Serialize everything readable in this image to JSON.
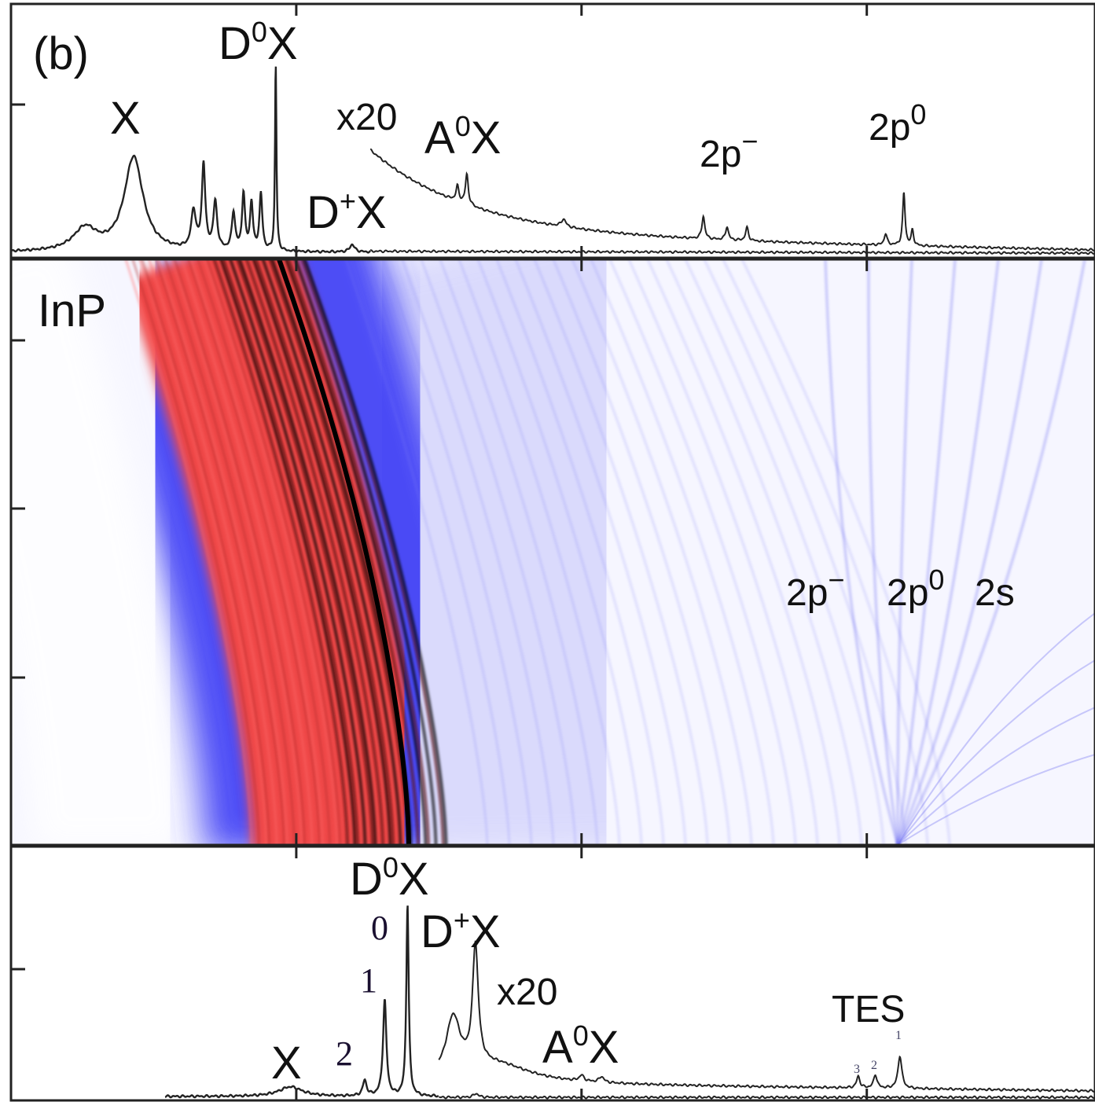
{
  "chart_data": [
    {
      "type": "line",
      "panel": "top",
      "panel_label": "(b)",
      "xlim": [
        0,
        3.8
      ],
      "xticks": [
        1,
        2,
        3
      ],
      "tick_labels_shown": false,
      "ylabel": "",
      "xlabel": "",
      "line_color": "#222222",
      "baseline_trace": {
        "x_range": [
          0.0,
          1.26
        ],
        "peaks": [
          {
            "x": 0.26,
            "h": 0.12,
            "w": 0.05
          },
          {
            "x": 0.43,
            "h": 0.5,
            "w": 0.04
          },
          {
            "x": 0.64,
            "h": 0.2,
            "w": 0.01
          },
          {
            "x": 0.675,
            "h": 0.45,
            "w": 0.007
          },
          {
            "x": 0.716,
            "h": 0.25,
            "w": 0.008
          },
          {
            "x": 0.78,
            "h": 0.2,
            "w": 0.007
          },
          {
            "x": 0.815,
            "h": 0.3,
            "w": 0.006
          },
          {
            "x": 0.843,
            "h": 0.25,
            "w": 0.006
          },
          {
            "x": 0.876,
            "h": 0.3,
            "w": 0.006
          },
          {
            "x": 0.928,
            "h": 1.0,
            "w": 0.003
          },
          {
            "x": 1.196,
            "h": 0.04,
            "w": 0.01
          }
        ]
      },
      "magnified_trace": {
        "factor_label": "x20",
        "x_range": [
          1.26,
          3.8
        ],
        "background": {
          "amp": 0.45,
          "decay": 0.35,
          "offset": 0.08
        },
        "peaks": [
          {
            "x": 1.565,
            "h": 0.08,
            "w": 0.006
          },
          {
            "x": 1.598,
            "h": 0.16,
            "w": 0.006
          },
          {
            "x": 1.937,
            "h": 0.04,
            "w": 0.01
          },
          {
            "x": 2.427,
            "h": 0.12,
            "w": 0.006
          },
          {
            "x": 2.51,
            "h": 0.07,
            "w": 0.006
          },
          {
            "x": 2.58,
            "h": 0.07,
            "w": 0.006
          },
          {
            "x": 3.066,
            "h": 0.06,
            "w": 0.006
          },
          {
            "x": 3.13,
            "h": 0.28,
            "w": 0.005
          },
          {
            "x": 3.16,
            "h": 0.08,
            "w": 0.005
          }
        ]
      },
      "annotations": {
        "x": "X",
        "d0x": {
          "base": "D",
          "sup": "0",
          "rest": "X"
        },
        "dplusx": {
          "base": "D",
          "sup": "+",
          "rest": "X"
        },
        "x20": "x20",
        "a0x": {
          "base": "A",
          "sup": "0",
          "rest": "X"
        },
        "twopminus": {
          "base": "2p",
          "sup": "−"
        },
        "twop0": {
          "base": "2p",
          "sup": "0"
        }
      }
    },
    {
      "type": "heatmap",
      "panel": "middle",
      "panel_label": "InP",
      "colormap": [
        "#ffffff",
        "#3a3af5",
        "#f04848",
        "#000000"
      ],
      "annotations": {
        "twopminus": {
          "base": "2p",
          "sup": "−"
        },
        "twop0": {
          "base": "2p",
          "sup": "0"
        },
        "twos": "2s"
      }
    },
    {
      "type": "line",
      "panel": "bottom",
      "xlim": [
        0,
        3.8
      ],
      "xticks": [
        1,
        2,
        3
      ],
      "tick_labels_shown": false,
      "line_color": "#222222",
      "baseline_trace": {
        "x_range": [
          0.54,
          1.5
        ],
        "peaks": [
          {
            "x": 0.98,
            "h": 0.05,
            "w": 0.05
          },
          {
            "x": 1.24,
            "h": 0.08,
            "w": 0.008
          },
          {
            "x": 1.31,
            "h": 0.5,
            "w": 0.007
          },
          {
            "x": 1.39,
            "h": 1.0,
            "w": 0.005
          }
        ]
      },
      "continuation_trace": {
        "x_range": [
          1.5,
          3.8
        ],
        "peaks": [
          {
            "x": 1.63,
            "h": 0.02,
            "w": 0.01
          }
        ]
      },
      "magnified_trace": {
        "factor_label": "x20",
        "x_range": [
          1.5,
          3.8
        ],
        "background": {
          "amp": 0.0,
          "decay": 0.35,
          "offset": 0.04
        },
        "peaks": [
          {
            "x": 1.55,
            "h": 0.3,
            "w": 0.03
          },
          {
            "x": 1.628,
            "h": 0.62,
            "w": 0.012
          },
          {
            "x": 1.7,
            "h": 0.1,
            "w": 0.15
          },
          {
            "x": 2.0,
            "h": 0.03,
            "w": 0.01
          },
          {
            "x": 2.07,
            "h": 0.03,
            "w": 0.01
          },
          {
            "x": 2.97,
            "h": 0.06,
            "w": 0.007
          },
          {
            "x": 3.03,
            "h": 0.07,
            "w": 0.007
          },
          {
            "x": 3.116,
            "h": 0.17,
            "w": 0.008
          }
        ]
      },
      "annotations": {
        "x": "X",
        "d0x": {
          "base": "D",
          "sup": "0",
          "rest": "X"
        },
        "n0": "0",
        "n1": "1",
        "n2": "2",
        "dplusx": {
          "base": "D",
          "sup": "+",
          "rest": "X"
        },
        "x20": "x20",
        "a0x": {
          "base": "A",
          "sup": "0",
          "rest": "X"
        },
        "tes": "TES",
        "tes_3": "3",
        "tes_2": "2",
        "tes_1": "1"
      }
    }
  ]
}
